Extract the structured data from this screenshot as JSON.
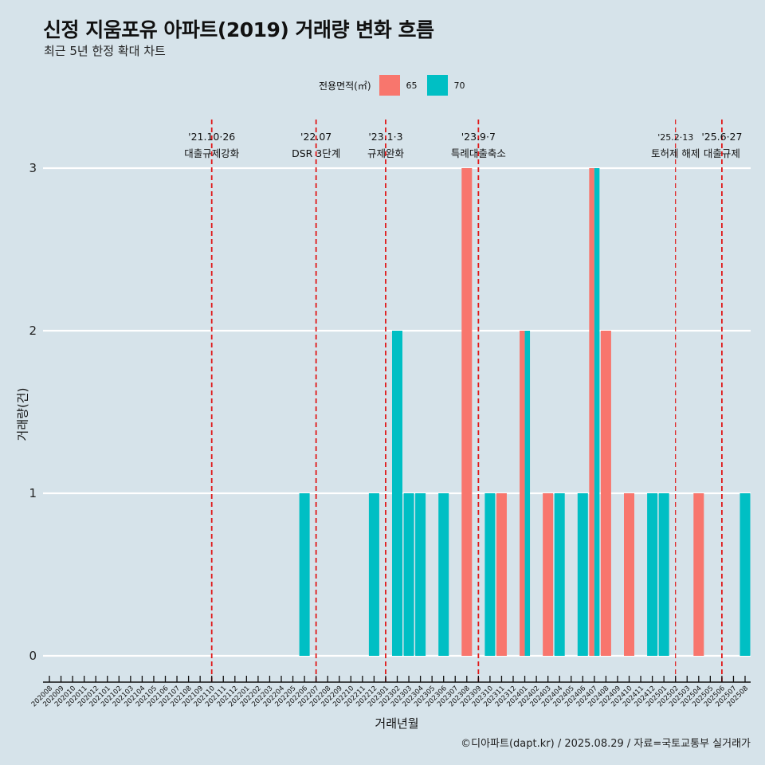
{
  "title": "신정 지움포유 아파트(2019) 거래량 변화 흐름",
  "subtitle": "최근 5년 한정 확대 차트",
  "legend": {
    "title": "전용면적(㎡)",
    "items": [
      {
        "label": "65",
        "color": "#f8766d"
      },
      {
        "label": "70",
        "color": "#00bfc4"
      }
    ]
  },
  "caption": "©디아파트(dapt.kr) / 2025.08.29 / 자료=국토교통부 실거래가",
  "chart_data": {
    "type": "bar",
    "title": "신정 지움포유 아파트(2019) 거래량 변화 흐름",
    "subtitle": "최근 5년 한정 확대 차트",
    "xlabel": "거래년월",
    "ylabel": "거래량(건)",
    "ylim": [
      0,
      3
    ],
    "yticks": [
      "0",
      "1",
      "2",
      "3"
    ],
    "grid": true,
    "legend_position": "top",
    "categories": [
      "202008",
      "202009",
      "202010",
      "202011",
      "202012",
      "202101",
      "202102",
      "202103",
      "202104",
      "202105",
      "202106",
      "202107",
      "202108",
      "202109",
      "202110",
      "202111",
      "202112",
      "202201",
      "202202",
      "202203",
      "202204",
      "202205",
      "202206",
      "202207",
      "202208",
      "202209",
      "202210",
      "202211",
      "202212",
      "202301",
      "202302",
      "202303",
      "202304",
      "202305",
      "202306",
      "202307",
      "202308",
      "202309",
      "202310",
      "202311",
      "202312",
      "202401",
      "202402",
      "202403",
      "202404",
      "202405",
      "202406",
      "202407",
      "202408",
      "202409",
      "202410",
      "202411",
      "202412",
      "202501",
      "202502",
      "202503",
      "202504",
      "202505",
      "202506",
      "202507",
      "202508"
    ],
    "series": [
      {
        "name": "65",
        "color": "#f8766d",
        "values": {
          "202308": 3,
          "202311": 1,
          "202401": 2,
          "202403": 1,
          "202407": 3,
          "202408": 2,
          "202410": 1,
          "202504": 1
        }
      },
      {
        "name": "70",
        "color": "#00bfc4",
        "values": {
          "202206": 1,
          "202212": 1,
          "202302": 2,
          "202303": 1,
          "202304": 1,
          "202306": 1,
          "202310": 1,
          "202401": 2,
          "202404": 1,
          "202406": 1,
          "202407": 3,
          "202412": 1,
          "202501": 1,
          "202508": 1
        }
      }
    ],
    "events": [
      {
        "month": "202110",
        "date": "'21.10·26",
        "label": "대출규제강화"
      },
      {
        "month": "202207",
        "date": "'22.07",
        "label": "DSR 3단계"
      },
      {
        "month": "202301",
        "date": "'23.1·3",
        "label": "규제완화"
      },
      {
        "month": "202309",
        "date": "'23.9·7",
        "label": "특례대출축소"
      },
      {
        "month": "202502",
        "date": "'25.2·13",
        "label": "토허제 해제",
        "thin": true
      },
      {
        "month": "202506",
        "date": "'25.6·27",
        "label": "대출규제"
      }
    ]
  }
}
